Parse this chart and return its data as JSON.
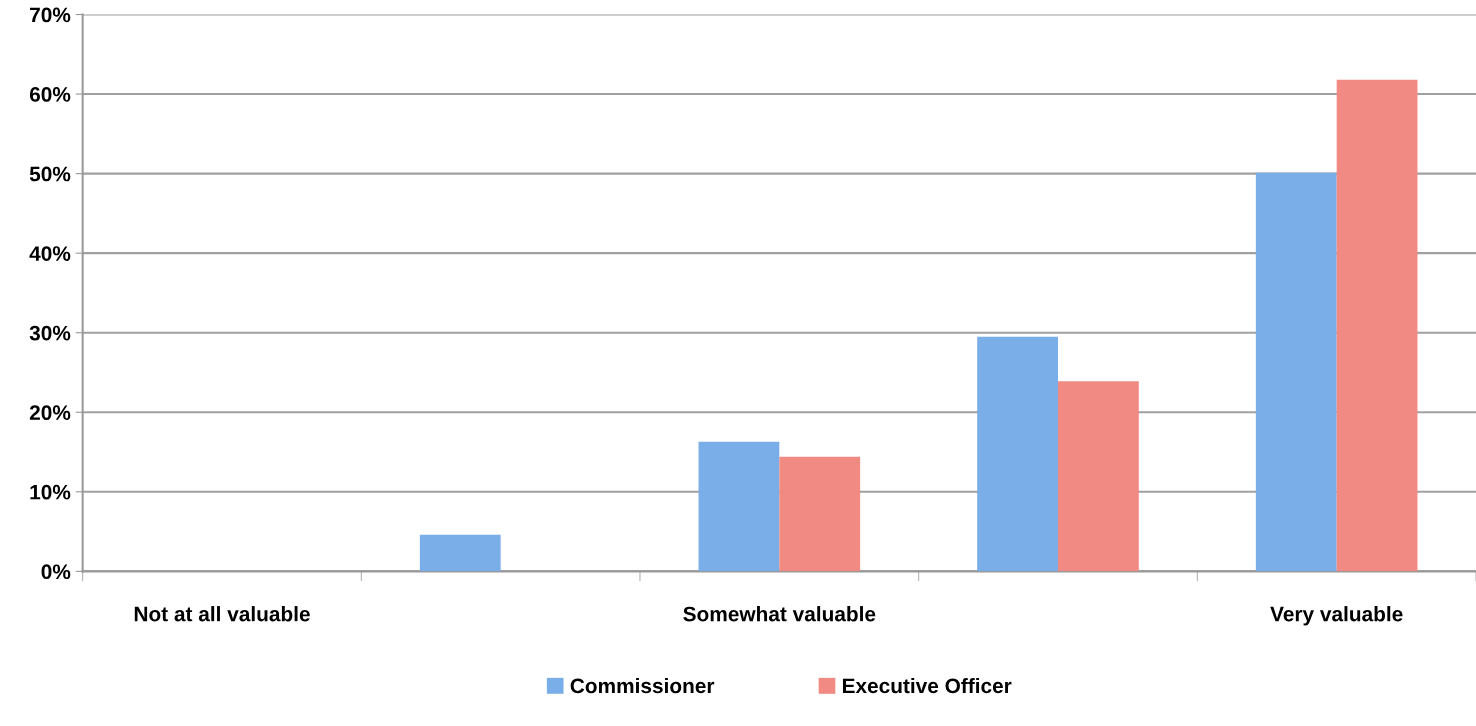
{
  "chart_data": {
    "type": "bar",
    "categories": [
      "Not at all valuable",
      null,
      "Somewhat valuable",
      null,
      "Very valuable"
    ],
    "series": [
      {
        "name": "Commissioner",
        "color": "#7aaee8",
        "values": [
          0,
          4.6,
          16.3,
          29.5,
          50.1
        ]
      },
      {
        "name": "Executive Officer",
        "color": "#f08a82",
        "values": [
          0,
          0,
          14.4,
          23.9,
          61.8
        ]
      }
    ],
    "ylim": [
      0,
      70
    ],
    "yticks": [
      {
        "value": 0,
        "label": "0%"
      },
      {
        "value": 10,
        "label": "10%"
      },
      {
        "value": 20,
        "label": "20%"
      },
      {
        "value": 30,
        "label": "30%"
      },
      {
        "value": 40,
        "label": "40%"
      },
      {
        "value": 50,
        "label": "50%"
      },
      {
        "value": 60,
        "label": "60%"
      },
      {
        "value": 70,
        "label": "70%"
      }
    ],
    "grid": "y",
    "legend": "bottom"
  }
}
